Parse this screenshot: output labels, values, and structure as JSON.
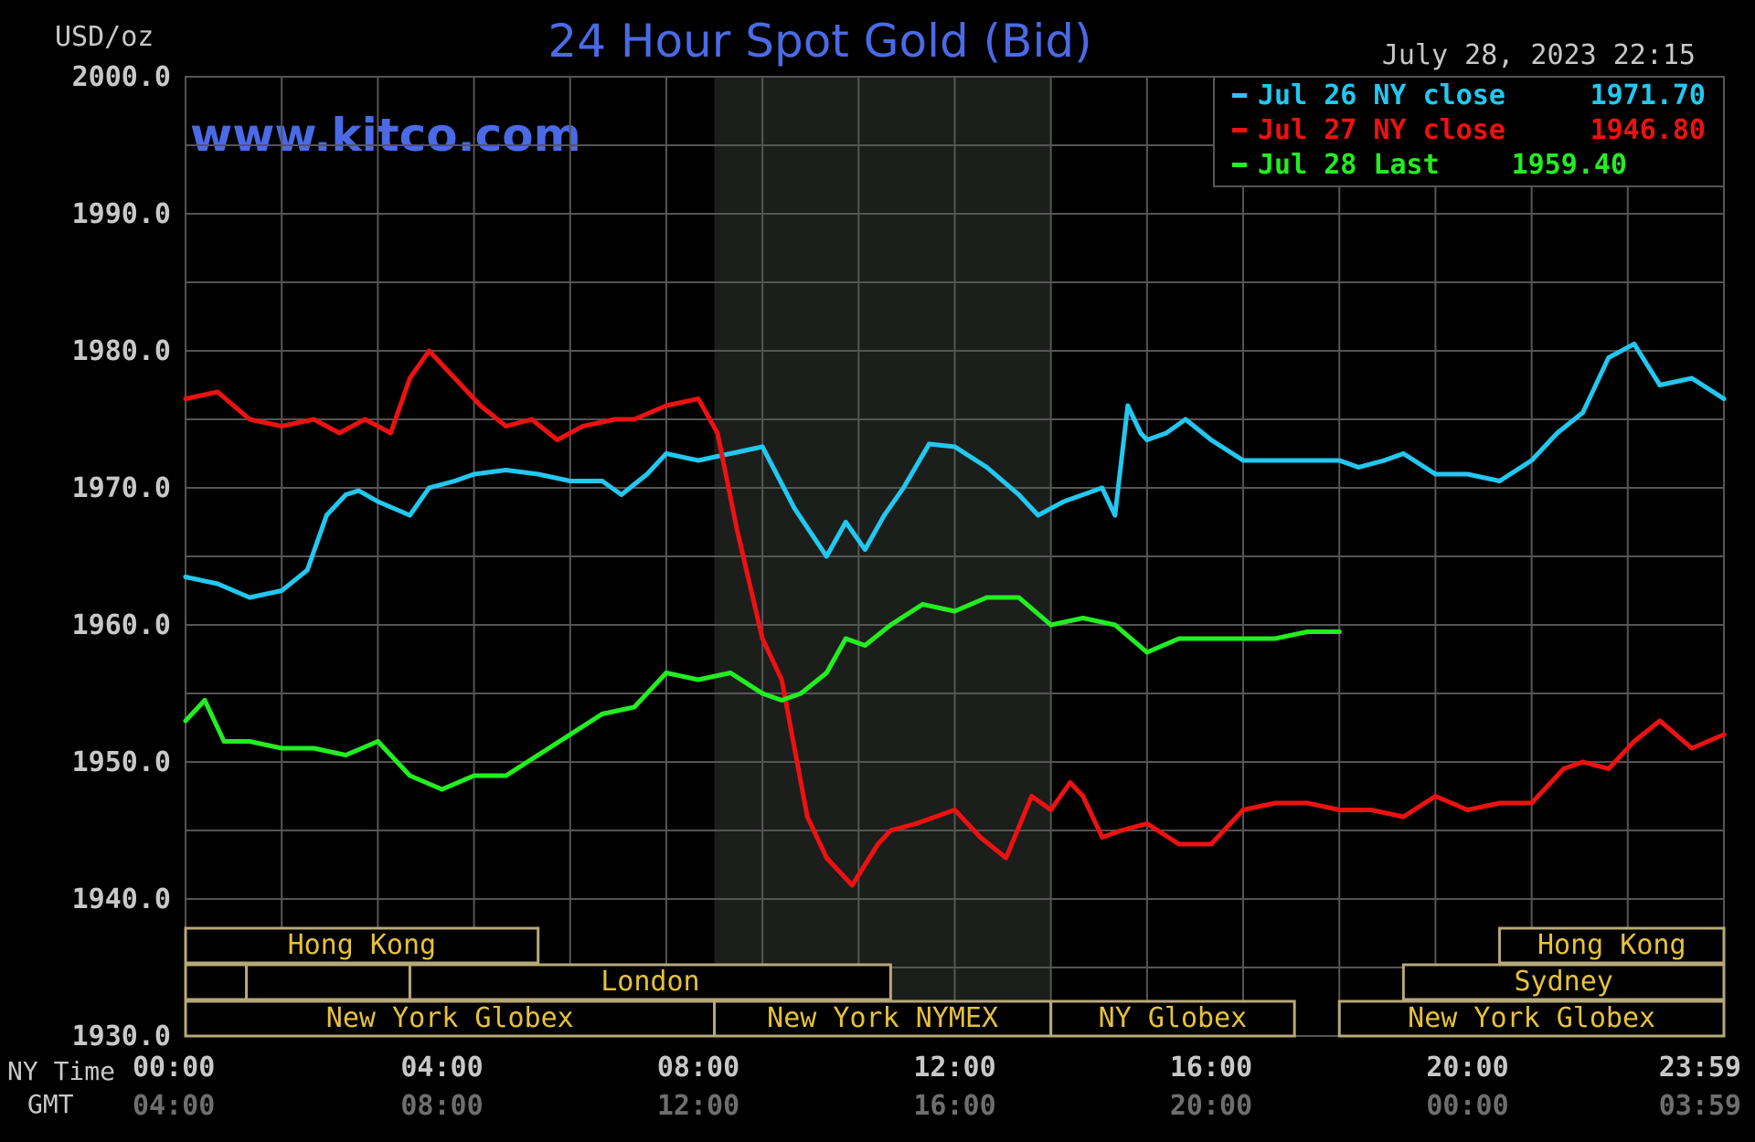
{
  "chart_data": {
    "type": "line",
    "title": "24 Hour Spot Gold (Bid)",
    "ylabel": "USD/oz",
    "watermark": "www.kitco.com",
    "timestamp": "July 28, 2023 22:15",
    "ylim": [
      1930,
      2000
    ],
    "yticks": [
      "2000.0",
      "1990.0",
      "1980.0",
      "1970.0",
      "1960.0",
      "1950.0",
      "1940.0",
      "1930.0"
    ],
    "xlim": [
      0,
      24
    ],
    "xticks_ny": [
      "00:00",
      "04:00",
      "08:00",
      "12:00",
      "16:00",
      "20:00",
      "23:59"
    ],
    "xticks_gmt": [
      "04:00",
      "08:00",
      "12:00",
      "16:00",
      "20:00",
      "00:00",
      "03:59"
    ],
    "xlabel_ny": "NY Time",
    "xlabel_gmt": "GMT",
    "shaded_region": [
      8.25,
      13.5
    ],
    "grid": true,
    "legend_position": "top-right",
    "series": [
      {
        "name": "Jul 26 NY close 1971.70",
        "legend_label": "Jul 26 NY close",
        "legend_value": "1971.70",
        "color": "#22c8f0",
        "x": [
          0,
          0.5,
          1,
          1.5,
          1.9,
          2.2,
          2.5,
          2.7,
          3,
          3.5,
          3.8,
          4.2,
          4.5,
          5,
          5.5,
          6,
          6.5,
          6.8,
          7.2,
          7.5,
          8,
          8.5,
          9,
          9.5,
          10,
          10.3,
          10.6,
          10.9,
          11.2,
          11.6,
          12,
          12.5,
          13,
          13.3,
          13.7,
          14,
          14.3,
          14.5,
          14.7,
          14.9,
          15,
          15.3,
          15.6,
          16,
          16.5,
          17,
          17.5,
          18,
          18.3,
          18.7,
          19,
          19.5,
          20,
          20.5,
          21,
          21.4,
          21.8,
          22.2,
          22.6,
          23,
          23.5,
          24
        ],
        "values": [
          1963.5,
          1963,
          1962,
          1962.5,
          1964,
          1968,
          1969.5,
          1969.8,
          1969,
          1968,
          1970,
          1970.5,
          1971,
          1971.3,
          1971,
          1970.5,
          1970.5,
          1969.5,
          1971,
          1972.5,
          1972,
          1972.5,
          1973,
          1968.5,
          1965,
          1967.5,
          1965.5,
          1968,
          1970,
          1973.2,
          1973,
          1971.5,
          1969.5,
          1968,
          1969,
          1969.5,
          1970,
          1968,
          1976,
          1974,
          1973.5,
          1974,
          1975,
          1973.5,
          1972,
          1972,
          1972,
          1972,
          1971.5,
          1972,
          1972.5,
          1971,
          1971,
          1970.5,
          1972,
          1974,
          1975.5,
          1979.5,
          1980.5,
          1977.5,
          1978,
          1976.5
        ]
      },
      {
        "name": "Jul 27 NY close 1946.80",
        "legend_label": "Jul 27 NY close",
        "legend_value": "1946.80",
        "color": "#ee1111",
        "x": [
          0,
          0.5,
          1,
          1.5,
          2,
          2.4,
          2.8,
          3.2,
          3.5,
          3.8,
          4.2,
          4.6,
          5,
          5.4,
          5.8,
          6.2,
          6.7,
          7,
          7.5,
          8,
          8.3,
          8.6,
          9,
          9.3,
          9.7,
          10,
          10.4,
          10.8,
          11,
          11.4,
          12,
          12.4,
          12.8,
          13.2,
          13.5,
          13.8,
          14,
          14.3,
          14.6,
          15,
          15.5,
          16,
          16.5,
          17,
          17.5,
          18,
          18.5,
          19,
          19.5,
          20,
          20.5,
          21,
          21.5,
          21.8,
          22.2,
          22.6,
          23,
          23.5,
          24
        ],
        "values": [
          1976.5,
          1977,
          1975,
          1974.5,
          1975,
          1974,
          1975,
          1974,
          1978,
          1980,
          1978,
          1976,
          1974.5,
          1975,
          1973.5,
          1974.5,
          1975,
          1975,
          1976,
          1976.5,
          1974,
          1967,
          1959,
          1956,
          1946,
          1943,
          1941,
          1944,
          1945,
          1945.5,
          1946.5,
          1944.5,
          1943,
          1947.5,
          1946.5,
          1948.5,
          1947.5,
          1944.5,
          1945,
          1945.5,
          1944,
          1944,
          1946.5,
          1947,
          1947,
          1946.5,
          1946.5,
          1946,
          1947.5,
          1946.5,
          1947,
          1947,
          1949.5,
          1950,
          1949.5,
          1951.5,
          1953,
          1951,
          1952
        ]
      },
      {
        "name": "Jul 28 Last 1959.40",
        "legend_label": "Jul 28 Last",
        "legend_value": "1959.40",
        "color": "#22ee22",
        "x": [
          0,
          0.3,
          0.6,
          1,
          1.5,
          2,
          2.5,
          3,
          3.5,
          4,
          4.5,
          5,
          5.5,
          6,
          6.5,
          7,
          7.5,
          8,
          8.5,
          9,
          9.3,
          9.6,
          10,
          10.3,
          10.6,
          11,
          11.5,
          12,
          12.5,
          13,
          13.5,
          14,
          14.5,
          15,
          15.5,
          16,
          16.5,
          17,
          17.5,
          18
        ],
        "values": [
          1953,
          1954.5,
          1951.5,
          1951.5,
          1951,
          1951,
          1950.5,
          1951.5,
          1949,
          1948,
          1949,
          1949,
          1950.5,
          1952,
          1953.5,
          1954,
          1956.5,
          1956,
          1956.5,
          1955,
          1954.5,
          1955,
          1956.5,
          1959,
          1958.5,
          1960,
          1961.5,
          1961,
          1962,
          1962,
          1960,
          1960.5,
          1960,
          1958,
          1959,
          1959,
          1959,
          1959,
          1959.5,
          1959.5
        ]
      }
    ],
    "sessions": [
      {
        "label": "Hong Kong",
        "row": 0,
        "start": 0,
        "end": 5.5
      },
      {
        "label": "",
        "row": 1,
        "start": 0,
        "end": 0.95
      },
      {
        "label": "",
        "row": 1,
        "start": 0.95,
        "end": 3.5
      },
      {
        "label": "London",
        "row": 1,
        "start": 3.5,
        "end": 11
      },
      {
        "label": "New York Globex",
        "row": 2,
        "start": 0,
        "end": 8.25
      },
      {
        "label": "New York NYMEX",
        "row": 2,
        "start": 8.25,
        "end": 13.5
      },
      {
        "label": "NY Globex",
        "row": 2,
        "start": 13.5,
        "end": 17.3
      },
      {
        "label": "New York Globex",
        "row": 2,
        "start": 18,
        "end": 24
      },
      {
        "label": "Hong Kong",
        "row": 0,
        "start": 20.5,
        "end": 24
      },
      {
        "label": "Sydney",
        "row": 1,
        "start": 19,
        "end": 24
      }
    ]
  },
  "colors": {
    "background": "#000000",
    "grid": "#555555",
    "shade": "#1c1e1c",
    "title": "#4a6ae6",
    "watermark": "#4a6ae6",
    "text": "#c8c8c8",
    "gmt_text": "#6e6e6e",
    "session_border": "#b8a878",
    "session_text": "#e6c23a"
  }
}
